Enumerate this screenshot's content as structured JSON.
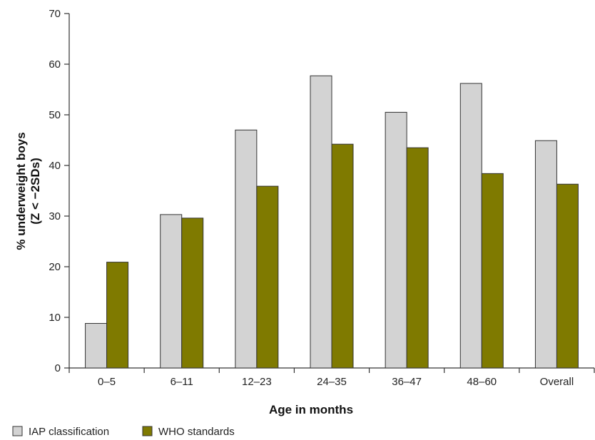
{
  "chart_data": {
    "type": "bar",
    "categories": [
      "0–5",
      "6–11",
      "12–23",
      "24–35",
      "36–47",
      "48–60",
      "Overall"
    ],
    "series": [
      {
        "name": "IAP classification",
        "color": "#d3d3d3",
        "values": [
          8.8,
          30.3,
          47.0,
          57.7,
          50.5,
          56.2,
          44.9
        ]
      },
      {
        "name": "WHO standards",
        "color": "#7f7a00",
        "values": [
          20.9,
          29.6,
          35.9,
          44.2,
          43.5,
          38.4,
          36.3
        ]
      }
    ],
    "xlabel": "Age in months",
    "ylabel_line1": "% underweight boys",
    "ylabel_line2": "(Z < −2SDs)",
    "ylim": [
      0,
      70
    ],
    "yticks": [
      "0",
      "10",
      "20",
      "30",
      "40",
      "50",
      "60",
      "70"
    ],
    "grid": false,
    "legend_position": "bottom-left"
  }
}
